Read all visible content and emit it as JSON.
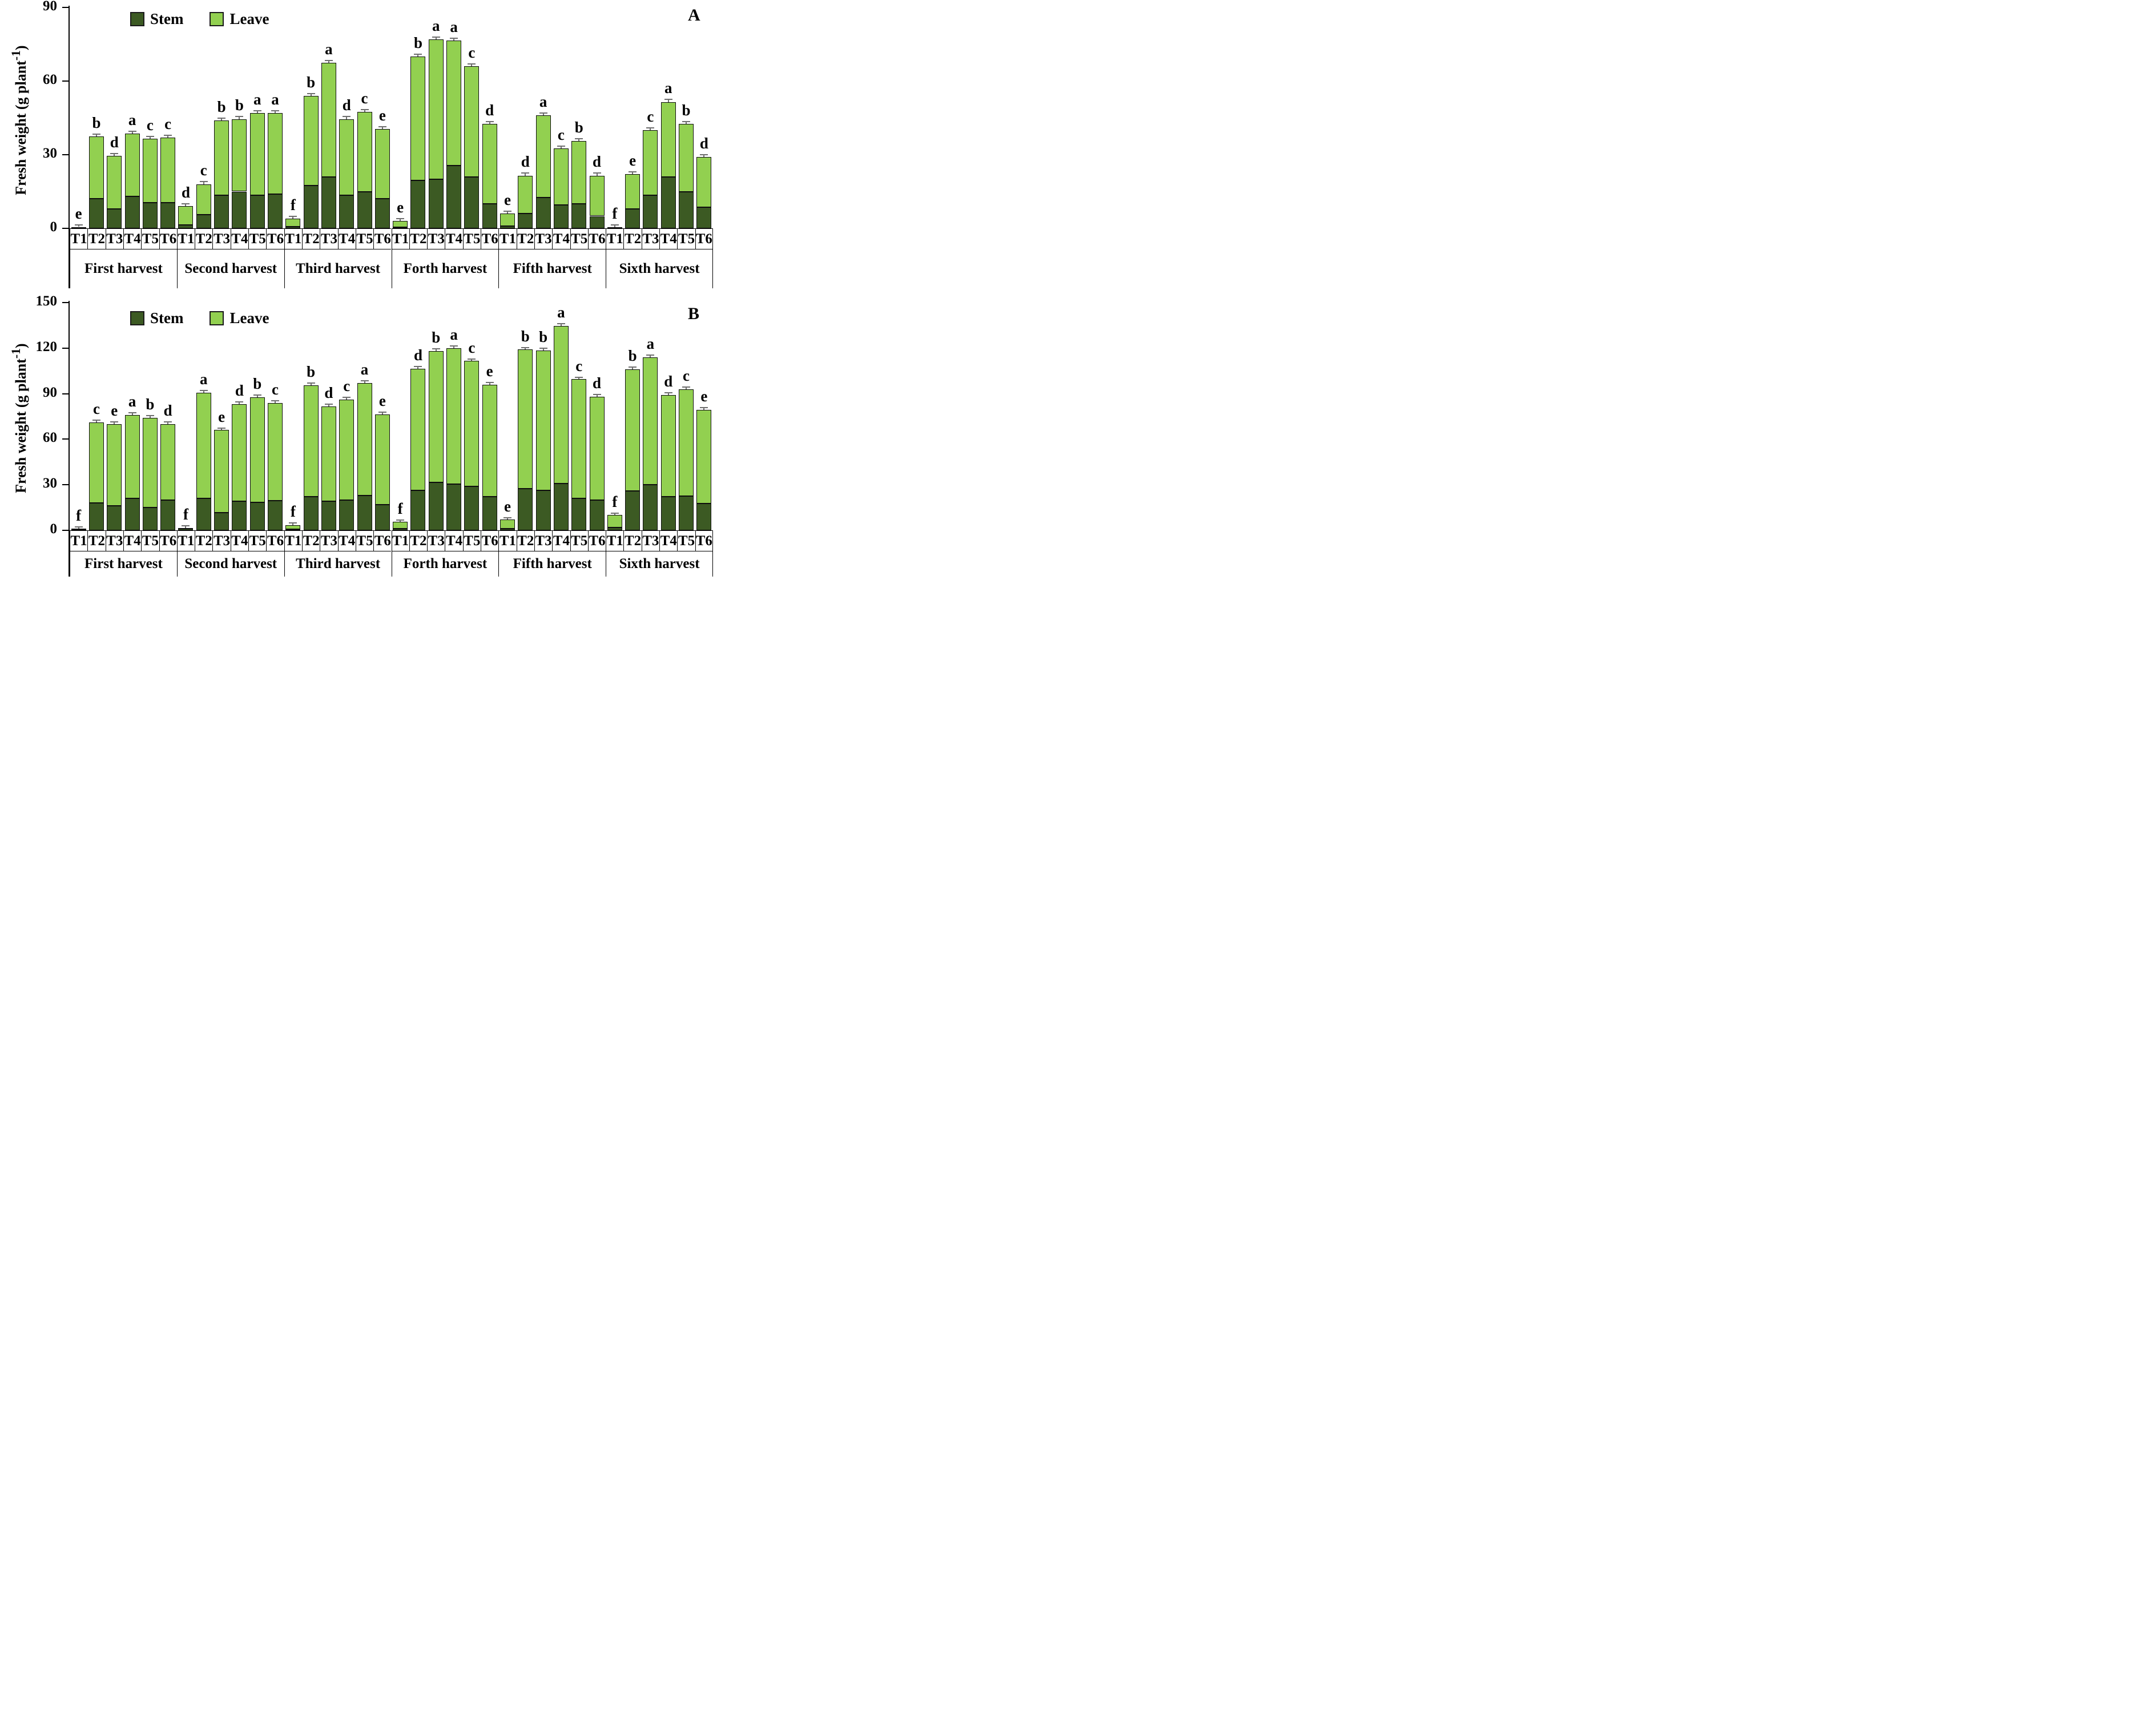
{
  "legend": {
    "stem": "Stem",
    "leave": "Leave"
  },
  "colors": {
    "stem": "#3c5a23",
    "leave": "#92d050",
    "bar_border": "#0d0d0d",
    "error_bar": "#6e6e6e"
  },
  "y_axis": {
    "prefix": "Fresh weight (g plant",
    "sup": "-1",
    "suffix": ")"
  },
  "treatments": [
    "T1",
    "T2",
    "T3",
    "T4",
    "T5",
    "T6"
  ],
  "harvests": [
    "First harvest",
    "Second harvest",
    "Third harvest",
    "Forth harvest",
    "Fifth harvest",
    "Sixth harvest"
  ],
  "chart_data": [
    {
      "panel_label": "A",
      "type": "bar",
      "stacked": true,
      "ylabel": "Fresh weight (g plant-1)",
      "ylim": [
        0,
        90
      ],
      "yticks": [
        0,
        30,
        60,
        90
      ],
      "legend_position": "top-left",
      "grid": false,
      "series_names": [
        "Stem",
        "Leave"
      ],
      "err": 1.2,
      "groups": [
        {
          "name": "First harvest",
          "letters": [
            "e",
            "b",
            "d",
            "a",
            "c",
            "c"
          ],
          "stem": [
            0.1,
            12.0,
            8.0,
            13.0,
            10.5,
            10.5
          ],
          "leave": [
            0.3,
            25.5,
            21.5,
            25.5,
            26.0,
            26.5
          ]
        },
        {
          "name": "Second harvest",
          "letters": [
            "d",
            "c",
            "b",
            "b",
            "a",
            "a"
          ],
          "stem": [
            1.5,
            5.5,
            13.5,
            15.0,
            13.5,
            14.0
          ],
          "leave": [
            7.5,
            12.5,
            30.5,
            29.5,
            33.5,
            33.0
          ]
        },
        {
          "name": "Third harvest",
          "letters": [
            "f",
            "b",
            "a",
            "d",
            "c",
            "e"
          ],
          "stem": [
            0.7,
            17.5,
            21.0,
            13.5,
            15.0,
            12.0
          ],
          "leave": [
            3.3,
            36.5,
            46.5,
            31.0,
            32.5,
            28.5
          ]
        },
        {
          "name": "Forth harvest",
          "letters": [
            "e",
            "b",
            "a",
            "a",
            "c",
            "d"
          ],
          "stem": [
            0.5,
            19.5,
            20.0,
            25.5,
            21.0,
            10.0
          ],
          "leave": [
            2.5,
            50.5,
            57.0,
            51.0,
            45.0,
            32.5
          ]
        },
        {
          "name": "Fifth harvest",
          "letters": [
            "e",
            "d",
            "a",
            "c",
            "b",
            "d"
          ],
          "stem": [
            1.0,
            6.0,
            12.5,
            9.5,
            10.0,
            5.0
          ],
          "leave": [
            5.0,
            15.5,
            33.5,
            23.0,
            25.5,
            16.5
          ]
        },
        {
          "name": "Sixth harvest",
          "letters": [
            "f",
            "e",
            "c",
            "a",
            "b",
            "d"
          ],
          "stem": [
            0.2,
            8.0,
            13.5,
            21.0,
            15.0,
            8.5
          ],
          "leave": [
            0.3,
            14.0,
            26.5,
            30.5,
            27.5,
            20.5
          ]
        }
      ]
    },
    {
      "panel_label": "B",
      "type": "bar",
      "stacked": true,
      "ylabel": "Fresh weight (g plant-1)",
      "ylim": [
        0,
        150
      ],
      "yticks": [
        0,
        30,
        60,
        90,
        120,
        150
      ],
      "legend_position": "top-left",
      "grid": false,
      "series_names": [
        "Stem",
        "Leave"
      ],
      "err": 1.8,
      "groups": [
        {
          "name": "First harvest",
          "letters": [
            "f",
            "c",
            "e",
            "a",
            "b",
            "d"
          ],
          "stem": [
            0.5,
            18.0,
            16.0,
            21.0,
            15.0,
            20.0
          ],
          "leave": [
            0.5,
            53.0,
            54.0,
            55.0,
            59.0,
            50.0
          ]
        },
        {
          "name": "Second harvest",
          "letters": [
            "f",
            "a",
            "e",
            "d",
            "b",
            "c"
          ],
          "stem": [
            1.0,
            21.0,
            11.5,
            19.0,
            18.5,
            19.5
          ],
          "leave": [
            0.5,
            69.5,
            54.5,
            64.0,
            69.0,
            64.5
          ]
        },
        {
          "name": "Third harvest",
          "letters": [
            "f",
            "b",
            "d",
            "c",
            "a",
            "e"
          ],
          "stem": [
            0.8,
            22.0,
            19.0,
            20.0,
            23.0,
            17.0
          ],
          "leave": [
            2.7,
            73.5,
            62.5,
            66.0,
            74.0,
            59.5
          ]
        },
        {
          "name": "Forth harvest",
          "letters": [
            "f",
            "d",
            "b",
            "a",
            "c",
            "e"
          ],
          "stem": [
            1.0,
            26.5,
            31.5,
            30.5,
            29.0,
            22.0
          ],
          "leave": [
            4.5,
            80.0,
            86.5,
            89.5,
            82.5,
            74.0
          ]
        },
        {
          "name": "Fifth harvest",
          "letters": [
            "e",
            "b",
            "b",
            "a",
            "c",
            "d"
          ],
          "stem": [
            1.2,
            27.5,
            26.5,
            31.0,
            21.0,
            20.0
          ],
          "leave": [
            5.8,
            91.5,
            92.0,
            103.5,
            78.5,
            68.0
          ]
        },
        {
          "name": "Sixth harvest",
          "letters": [
            "f",
            "b",
            "a",
            "d",
            "c",
            "e"
          ],
          "stem": [
            2.0,
            26.0,
            30.0,
            22.0,
            22.5,
            17.5
          ],
          "leave": [
            8.0,
            80.0,
            84.0,
            67.0,
            70.5,
            62.0
          ]
        }
      ]
    }
  ]
}
